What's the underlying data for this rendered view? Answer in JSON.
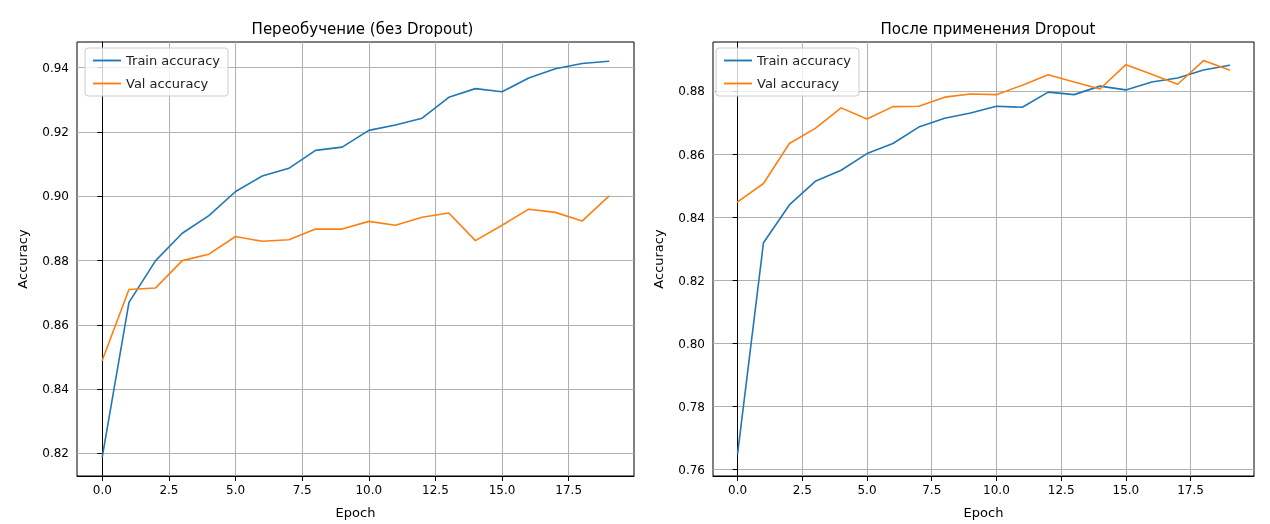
{
  "chart_data": [
    {
      "type": "line",
      "title": "Переобучение (без Dropout)",
      "xlabel": "Epoch",
      "ylabel": "Accuracy",
      "x": [
        0,
        1,
        2,
        3,
        4,
        5,
        6,
        7,
        8,
        9,
        10,
        11,
        12,
        13,
        14,
        15,
        16,
        17,
        18,
        19
      ],
      "series": [
        {
          "name": "Train accuracy",
          "color": "#1f77b4",
          "values": [
            0.819,
            0.867,
            0.88,
            0.8885,
            0.894,
            0.9015,
            0.9063,
            0.9087,
            0.9143,
            0.9153,
            0.9205,
            0.9222,
            0.9243,
            0.9308,
            0.9335,
            0.9325,
            0.9368,
            0.9397,
            0.9413,
            0.942
          ]
        },
        {
          "name": "Val accuracy",
          "color": "#ff7f0e",
          "values": [
            0.849,
            0.871,
            0.8715,
            0.88,
            0.882,
            0.8875,
            0.886,
            0.8865,
            0.8898,
            0.8898,
            0.8922,
            0.891,
            0.8935,
            0.8948,
            0.8862,
            0.891,
            0.896,
            0.895,
            0.8923,
            0.9
          ]
        }
      ],
      "xlim": [
        -0.95,
        19.95
      ],
      "xticks": [
        {
          "value": 0,
          "label": "0.0"
        },
        2.5,
        {
          "value": 5,
          "label": "5.0"
        },
        7.5,
        {
          "value": 10,
          "label": "10.0"
        },
        12.5,
        {
          "value": 15,
          "label": "15.0"
        },
        17.5
      ],
      "ylim": [
        0.813,
        0.948
      ],
      "yticks": [
        0.82,
        0.84,
        0.86,
        0.88,
        {
          "value": 0.9,
          "label": "0.90"
        },
        0.92,
        0.94
      ],
      "grid": true,
      "legend": "top left",
      "marker": "none",
      "line_style": "solid"
    },
    {
      "type": "line",
      "title": "После применения Dropout",
      "xlabel": "Epoch",
      "ylabel": "Accuracy",
      "x": [
        0,
        1,
        2,
        3,
        4,
        5,
        6,
        7,
        8,
        9,
        10,
        11,
        12,
        13,
        14,
        15,
        16,
        17,
        18,
        19
      ],
      "series": [
        {
          "name": "Train accuracy",
          "color": "#1f77b4",
          "values": [
            0.765,
            0.832,
            0.844,
            0.8515,
            0.855,
            0.8603,
            0.8635,
            0.8687,
            0.8715,
            0.8732,
            0.8753,
            0.875,
            0.8798,
            0.879,
            0.8817,
            0.8805,
            0.883,
            0.8843,
            0.8868,
            0.8883
          ]
        },
        {
          "name": "Val accuracy",
          "color": "#ff7f0e",
          "values": [
            0.845,
            0.8508,
            0.8635,
            0.8683,
            0.8748,
            0.8713,
            0.8752,
            0.8753,
            0.8782,
            0.8792,
            0.879,
            0.882,
            0.8853,
            0.883,
            0.8808,
            0.8885,
            0.8855,
            0.8823,
            0.8898,
            0.8868
          ]
        }
      ],
      "xlim": [
        -0.95,
        19.95
      ],
      "xticks": [
        {
          "value": 0,
          "label": "0.0"
        },
        2.5,
        {
          "value": 5,
          "label": "5.0"
        },
        7.5,
        {
          "value": 10,
          "label": "10.0"
        },
        12.5,
        {
          "value": 15,
          "label": "15.0"
        },
        17.5
      ],
      "ylim": [
        0.758,
        0.8957
      ],
      "yticks": [
        0.76,
        0.78,
        {
          "value": 0.8,
          "label": "0.80"
        },
        0.82,
        0.84,
        0.86,
        0.88
      ],
      "grid": true,
      "legend": "top left",
      "marker": "none",
      "line_style": "solid"
    }
  ]
}
